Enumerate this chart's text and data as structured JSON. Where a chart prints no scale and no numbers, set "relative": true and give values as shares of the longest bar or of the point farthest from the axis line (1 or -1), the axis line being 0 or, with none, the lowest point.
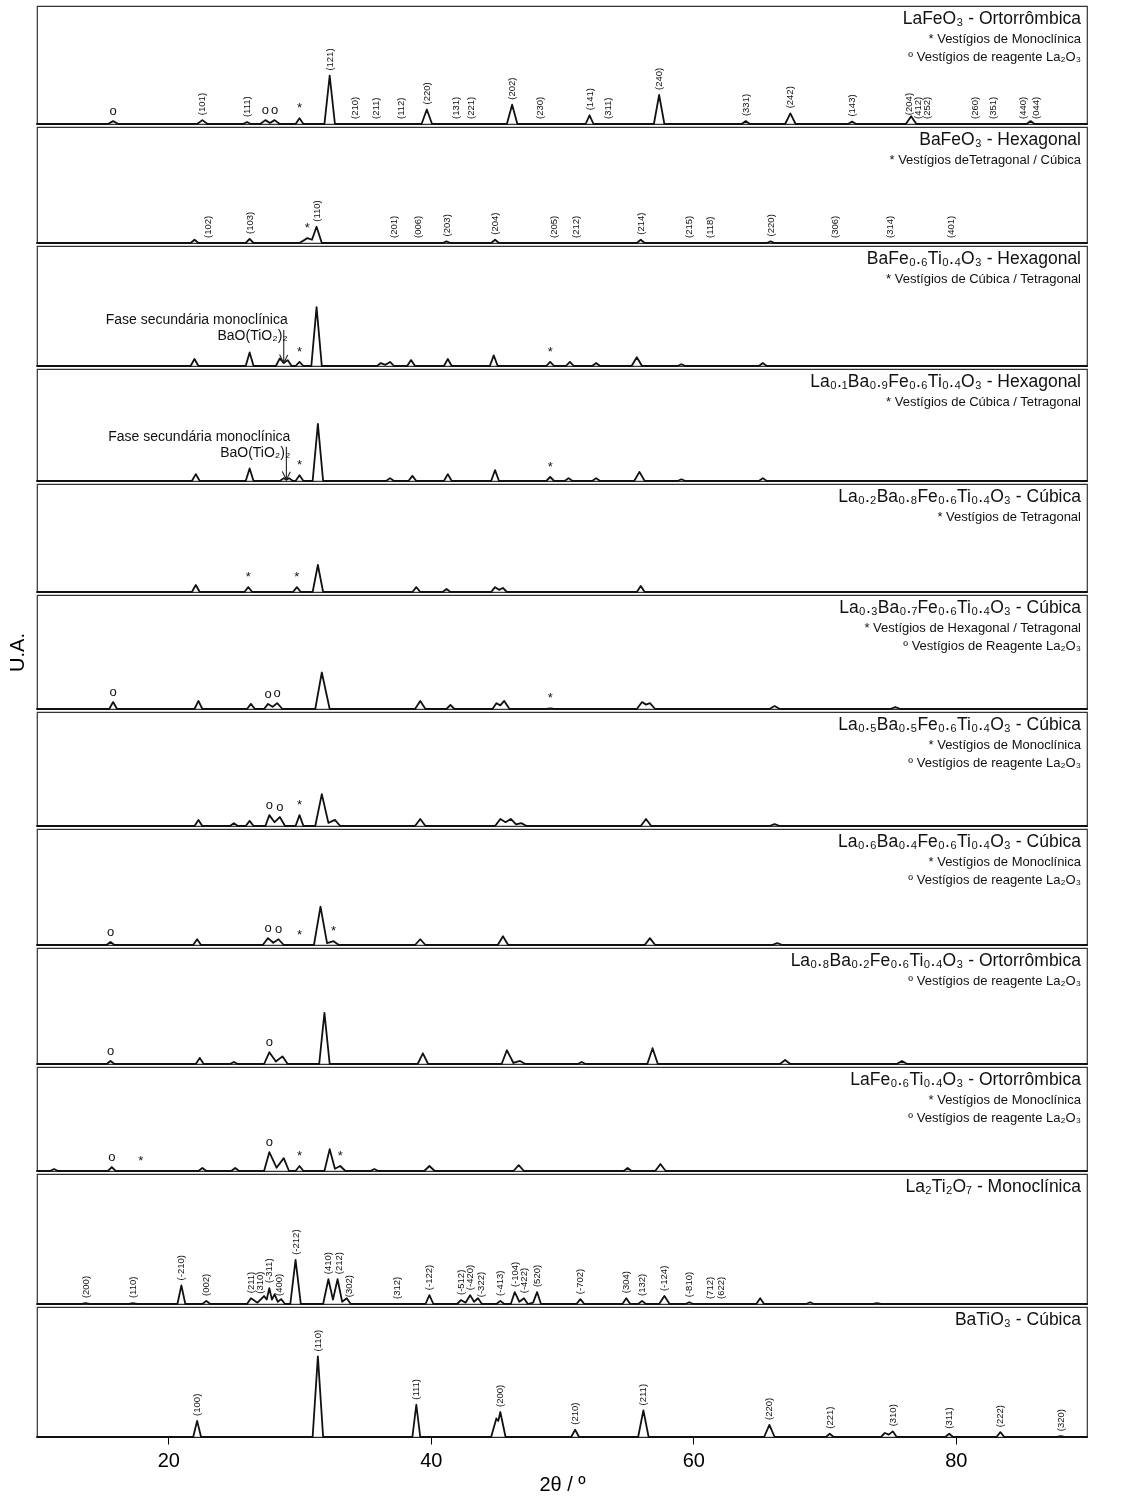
{
  "chart_data": [
    {
      "type": "line",
      "relative": true,
      "title": "LaFeO₃ - Ortorrômbica",
      "xlim": [
        10,
        90
      ],
      "tick_labels": false,
      "x": [
        10,
        15.4,
        15.8,
        16.2,
        22.2,
        22.6,
        23.0,
        25.7,
        26.0,
        26.3,
        27.0,
        27.4,
        27.75,
        28.1,
        28.5,
        29.7,
        30.0,
        30.3,
        31.9,
        32.3,
        32.7,
        39.3,
        39.7,
        40.1,
        45.8,
        46.2,
        46.6,
        51.8,
        52.1,
        52.4,
        57.0,
        57.4,
        57.8,
        63.7,
        64.0,
        64.3,
        67.0,
        67.4,
        67.8,
        71.8,
        72.1,
        72.4,
        76.2,
        76.6,
        77.0,
        85.4,
        85.7,
        86.0,
        90
      ],
      "series": [
        {
          "color": "#111111",
          "values": [
            0,
            0,
            0.06,
            0,
            0,
            0.08,
            0,
            0,
            0.04,
            0,
            0,
            0.08,
            0.02,
            0.08,
            0,
            0,
            0.12,
            0,
            0,
            1,
            0,
            0,
            0.3,
            0,
            0,
            0.4,
            0,
            0,
            0.18,
            0,
            0,
            0.6,
            0,
            0,
            0.06,
            0,
            0,
            0.22,
            0,
            0,
            0.05,
            0,
            0,
            0.16,
            0,
            0,
            0.06,
            0,
            0
          ]
        }
      ],
      "annotations": [
        "* Vestígios de Monoclínica",
        "º Vestígios de reagente La₂O₃",
        {
          "text": "o",
          "x": 15.8,
          "y": 0.06
        },
        {
          "text": "o",
          "x": 27.4,
          "y": 0.08
        },
        {
          "text": "o",
          "x": 28.1,
          "y": 0.08
        },
        {
          "text": "*",
          "x": 30.0,
          "y": 0.12
        },
        {
          "text": "(101)",
          "x": 22.6,
          "y": 0.08
        },
        {
          "text": "(111)",
          "x": 26.0,
          "y": 0.04
        },
        {
          "text": "(121)",
          "x": 32.3,
          "y": 1
        },
        {
          "text": "(210)",
          "x": 34.2,
          "y": 0
        },
        {
          "text": "(211)",
          "x": 35.8,
          "y": 0
        },
        {
          "text": "(112)",
          "x": 37.7,
          "y": 0
        },
        {
          "text": "(220)",
          "x": 39.7,
          "y": 0.3
        },
        {
          "text": "(131)",
          "x": 41.9,
          "y": 0
        },
        {
          "text": "(221)",
          "x": 43.1,
          "y": 0
        },
        {
          "text": "(202)",
          "x": 46.2,
          "y": 0.4
        },
        {
          "text": "(230)",
          "x": 48.3,
          "y": 0
        },
        {
          "text": "(141)",
          "x": 52.1,
          "y": 0.18
        },
        {
          "text": "(311)",
          "x": 53.5,
          "y": 0
        },
        {
          "text": "(240)",
          "x": 57.4,
          "y": 0.6
        },
        {
          "text": "(331)",
          "x": 64.0,
          "y": 0.06
        },
        {
          "text": "(242)",
          "x": 67.4,
          "y": 0.22
        },
        {
          "text": "(143)",
          "x": 72.1,
          "y": 0.05
        },
        {
          "text": "(204)",
          "x": 76.4,
          "y": 0.08
        },
        {
          "text": "(412)",
          "x": 77.1,
          "y": 0
        },
        {
          "text": "(252)",
          "x": 77.8,
          "y": 0
        },
        {
          "text": "(260)",
          "x": 81.5,
          "y": 0
        },
        {
          "text": "(351)",
          "x": 82.8,
          "y": 0
        },
        {
          "text": "(440)",
          "x": 85.1,
          "y": 0
        },
        {
          "text": "(044)",
          "x": 86.1,
          "y": 0
        }
      ]
    },
    {
      "type": "line",
      "relative": true,
      "title": "BaFeO₃ - Hexagonal",
      "xlim": [
        10,
        90
      ],
      "tick_labels": false,
      "x": [
        10,
        21.7,
        22.0,
        22.3,
        25.9,
        26.2,
        26.5,
        30.0,
        30.6,
        30.95,
        31.3,
        31.7,
        40.9,
        41.2,
        41.5,
        44.6,
        44.9,
        45.2,
        55.7,
        56.0,
        56.3,
        65.6,
        65.9,
        66.2,
        90
      ],
      "series": [
        {
          "color": "#111111",
          "values": [
            0,
            0,
            0.2,
            0,
            0,
            0.25,
            0,
            0,
            0.3,
            0.2,
            1,
            0,
            0,
            0.1,
            0,
            0,
            0.2,
            0,
            0,
            0.2,
            0,
            0,
            0.1,
            0,
            0
          ]
        }
      ],
      "annotations": [
        "* Vestígios deTetragonal / Cúbica",
        {
          "text": "*",
          "x": 30.6,
          "y": 0.3
        },
        {
          "text": "(102)",
          "x": 23.0,
          "y": 0
        },
        {
          "text": "(103)",
          "x": 26.2,
          "y": 0.25
        },
        {
          "text": "(110)",
          "x": 31.3,
          "y": 1
        },
        {
          "text": "(201)",
          "x": 37.2,
          "y": 0
        },
        {
          "text": "(006)",
          "x": 39.0,
          "y": 0
        },
        {
          "text": "(203)",
          "x": 41.2,
          "y": 0.1
        },
        {
          "text": "(204)",
          "x": 44.9,
          "y": 0.2
        },
        {
          "text": "(205)",
          "x": 49.4,
          "y": 0
        },
        {
          "text": "(212)",
          "x": 51.1,
          "y": 0
        },
        {
          "text": "(214)",
          "x": 56.0,
          "y": 0.2
        },
        {
          "text": "(215)",
          "x": 59.7,
          "y": 0
        },
        {
          "text": "(118)",
          "x": 61.3,
          "y": 0
        },
        {
          "text": "(220)",
          "x": 65.9,
          "y": 0.1
        },
        {
          "text": "(306)",
          "x": 70.8,
          "y": 0
        },
        {
          "text": "(314)",
          "x": 75.0,
          "y": 0
        },
        {
          "text": "(401)",
          "x": 79.6,
          "y": 0
        }
      ]
    },
    {
      "type": "line",
      "relative": true,
      "title": "BaFe₀.₆Ti₀.₄O₃ - Hexagonal",
      "xlim": [
        10,
        90
      ],
      "tick_labels": false,
      "x": [
        10,
        21.7,
        22.0,
        22.3,
        25.9,
        26.2,
        26.5,
        28.2,
        28.5,
        28.8,
        29.1,
        29.4,
        29.7,
        30.0,
        30.3,
        30.9,
        31.3,
        31.7,
        35.9,
        36.2,
        36.55,
        36.9,
        37.2,
        38.2,
        38.5,
        38.8,
        41.0,
        41.3,
        41.6,
        44.5,
        44.8,
        45.1,
        48.8,
        49.1,
        49.4,
        50.3,
        50.6,
        50.9,
        52.3,
        52.6,
        52.9,
        55.3,
        55.7,
        56.1,
        58.8,
        59.1,
        59.4,
        65.0,
        65.3,
        65.6,
        90
      ],
      "series": [
        {
          "color": "#111111",
          "values": [
            0,
            0,
            0.12,
            0,
            0,
            0.23,
            0,
            0,
            0.13,
            0.05,
            0.1,
            0,
            0,
            0.07,
            0,
            0,
            1,
            0,
            0,
            0.05,
            0.02,
            0.07,
            0,
            0,
            0.1,
            0,
            0,
            0.12,
            0,
            0,
            0.18,
            0,
            0,
            0.07,
            0,
            0,
            0.07,
            0,
            0,
            0.05,
            0,
            0,
            0.15,
            0,
            0,
            0.03,
            0,
            0,
            0.05,
            0,
            0
          ]
        }
      ],
      "annotations": [
        "* Vestígios de Cúbica / Tetragonal",
        {
          "text": "Fase secundária monoclínica BaO(TiO₂)₂",
          "x": 28.8,
          "y": 0.05
        },
        {
          "text": "*",
          "x": 30.0,
          "y": 0.07
        },
        {
          "text": "*",
          "x": 49.1,
          "y": 0.07
        }
      ]
    },
    {
      "type": "line",
      "relative": true,
      "title": "La₀.₁Ba₀.₉Fe₀.₆Ti₀.₄O₃ - Hexagonal",
      "xlim": [
        10,
        90
      ],
      "tick_labels": false,
      "x": [
        10,
        21.8,
        22.1,
        22.4,
        25.9,
        26.2,
        26.5,
        28.5,
        28.8,
        29.0,
        29.2,
        29.5,
        29.7,
        30.0,
        30.3,
        31.0,
        31.4,
        31.8,
        36.6,
        36.9,
        37.2,
        38.3,
        38.6,
        38.9,
        41.0,
        41.3,
        41.6,
        44.6,
        44.9,
        45.2,
        48.8,
        49.1,
        49.4,
        50.2,
        50.5,
        50.8,
        52.3,
        52.6,
        52.9,
        55.5,
        55.9,
        56.3,
        58.8,
        59.1,
        59.4,
        65.0,
        65.3,
        65.6,
        90
      ],
      "series": [
        {
          "color": "#111111",
          "values": [
            0,
            0,
            0.12,
            0,
            0,
            0.22,
            0,
            0,
            0.05,
            0.02,
            0.05,
            0,
            0,
            0.1,
            0,
            0,
            1,
            0,
            0,
            0.05,
            0,
            0,
            0.09,
            0,
            0,
            0.12,
            0,
            0,
            0.19,
            0,
            0,
            0.07,
            0,
            0,
            0.05,
            0,
            0,
            0.05,
            0,
            0,
            0.16,
            0,
            0,
            0.03,
            0,
            0,
            0.05,
            0,
            0
          ]
        }
      ],
      "annotations": [
        "* Vestígios de Cúbica / Tetragonal",
        {
          "text": "Fase secundária monoclínica BaO(TiO₂)₂",
          "x": 29.0,
          "y": 0.02
        },
        {
          "text": "*",
          "x": 30.0,
          "y": 0.1
        },
        {
          "text": "*",
          "x": 49.1,
          "y": 0.07
        }
      ]
    },
    {
      "type": "line",
      "relative": true,
      "title": "La₀.₂Ba₀.₈Fe₀.₆Ti₀.₄O₃ - Cúbica",
      "xlim": [
        10,
        90
      ],
      "tick_labels": false,
      "x": [
        10,
        21.8,
        22.1,
        22.4,
        25.8,
        26.1,
        26.4,
        29.5,
        29.8,
        30.1,
        31.0,
        31.4,
        31.8,
        38.6,
        38.9,
        39.2,
        40.9,
        41.2,
        41.5,
        44.6,
        44.9,
        45.2,
        45.5,
        45.8,
        55.7,
        56.0,
        56.3,
        90
      ],
      "series": [
        {
          "color": "#111111",
          "values": [
            0,
            0,
            0.26,
            0,
            0,
            0.18,
            0,
            0,
            0.18,
            0,
            0,
            1,
            0,
            0,
            0.18,
            0,
            0,
            0.11,
            0,
            0,
            0.18,
            0.08,
            0.15,
            0,
            0,
            0.22,
            0,
            0
          ]
        }
      ],
      "annotations": [
        "* Vestígios de Tetragonal",
        {
          "text": "*",
          "x": 26.1,
          "y": 0.18
        },
        {
          "text": "*",
          "x": 29.8,
          "y": 0.18
        }
      ]
    },
    {
      "type": "line",
      "relative": true,
      "title": "La₀.₃Ba₀.₇Fe₀.₆Ti₀.₄O₃ - Cúbica",
      "ylabel": "U.A.",
      "xlim": [
        10,
        90
      ],
      "tick_labels": false,
      "x": [
        10,
        15.5,
        15.8,
        16.1,
        22.0,
        22.3,
        22.6,
        26.0,
        26.3,
        26.6,
        27.3,
        27.6,
        27.95,
        28.3,
        28.7,
        31.2,
        31.7,
        32.3,
        38.8,
        39.2,
        39.6,
        41.2,
        41.5,
        41.8,
        44.7,
        45.0,
        45.3,
        45.6,
        46.0,
        48.8,
        49.1,
        49.4,
        55.7,
        56.1,
        56.4,
        56.7,
        57.1,
        65.8,
        66.2,
        66.6,
        75.0,
        75.4,
        75.8,
        90
      ],
      "series": [
        {
          "color": "#111111",
          "values": [
            0,
            0,
            0.19,
            0,
            0,
            0.22,
            0,
            0,
            0.14,
            0,
            0,
            0.14,
            0.06,
            0.16,
            0,
            0,
            1,
            0,
            0,
            0.22,
            0,
            0,
            0.11,
            0,
            0,
            0.16,
            0.1,
            0.22,
            0,
            0,
            0.02,
            0,
            0,
            0.19,
            0.12,
            0.16,
            0,
            0,
            0.08,
            0,
            0,
            0.05,
            0,
            0
          ]
        }
      ],
      "annotations": [
        "* Vestígios de Hexagonal / Tetragonal",
        "º Vestígios de Reagente La₂O₃",
        {
          "text": "o",
          "x": 15.8,
          "y": 0.19
        },
        {
          "text": "o",
          "x": 27.6,
          "y": 0.14
        },
        {
          "text": "o",
          "x": 28.3,
          "y": 0.16
        },
        {
          "text": "*",
          "x": 49.1,
          "y": 0.02
        }
      ]
    },
    {
      "type": "line",
      "relative": true,
      "title": "La₀.₅Ba₀.₅Fe₀.₆Ti₀.₄O₃ - Cúbica",
      "xlim": [
        10,
        90
      ],
      "tick_labels": false,
      "x": [
        10,
        22.0,
        22.3,
        22.6,
        24.7,
        25.0,
        25.3,
        25.9,
        26.2,
        26.5,
        27.4,
        27.7,
        28.1,
        28.5,
        28.9,
        29.7,
        30.0,
        30.3,
        31.2,
        31.7,
        32.2,
        32.7,
        33.1,
        38.8,
        39.2,
        39.6,
        44.9,
        45.3,
        45.7,
        46.1,
        46.5,
        46.9,
        47.3,
        56.0,
        56.4,
        56.8,
        65.8,
        66.2,
        66.6,
        90
      ],
      "series": [
        {
          "color": "#111111",
          "values": [
            0,
            0,
            0.19,
            0,
            0,
            0.09,
            0,
            0,
            0.16,
            0,
            0,
            0.34,
            0.12,
            0.28,
            0,
            0,
            0.34,
            0,
            0,
            1,
            0.1,
            0.19,
            0,
            0,
            0.22,
            0,
            0,
            0.22,
            0.12,
            0.22,
            0.05,
            0.09,
            0,
            0,
            0.22,
            0,
            0,
            0.06,
            0,
            0
          ]
        }
      ],
      "annotations": [
        "* Vestígios de Monoclínica",
        "º Vestígios de reagente La₂O₃",
        {
          "text": "o",
          "x": 27.7,
          "y": 0.34
        },
        {
          "text": "o",
          "x": 28.5,
          "y": 0.28
        },
        {
          "text": "*",
          "x": 30.0,
          "y": 0.34
        }
      ]
    },
    {
      "type": "line",
      "relative": true,
      "title": "La₀.₆Ba₀.₄Fe₀.₆Ti₀.₄O₃ - Cúbica",
      "xlim": [
        10,
        90
      ],
      "tick_labels": false,
      "x": [
        10,
        15.3,
        15.6,
        15.9,
        21.9,
        22.2,
        22.5,
        27.2,
        27.6,
        28.0,
        28.4,
        28.8,
        31.1,
        31.6,
        32.1,
        32.6,
        33.0,
        38.8,
        39.2,
        39.6,
        45.1,
        45.5,
        45.9,
        56.3,
        56.7,
        57.1,
        66.0,
        66.4,
        66.8,
        90
      ],
      "series": [
        {
          "color": "#111111",
          "values": [
            0,
            0,
            0.08,
            0,
            0,
            0.15,
            0,
            0,
            0.18,
            0.06,
            0.15,
            0,
            0,
            1,
            0.05,
            0.1,
            0,
            0,
            0.15,
            0,
            0,
            0.23,
            0,
            0,
            0.18,
            0,
            0,
            0.05,
            0,
            0
          ]
        }
      ],
      "annotations": [
        "* Vestígios de Monoclínica",
        "º Vestígios de reagente La₂O₃",
        {
          "text": "o",
          "x": 15.6,
          "y": 0.08
        },
        {
          "text": "o",
          "x": 27.6,
          "y": 0.18
        },
        {
          "text": "o",
          "x": 28.4,
          "y": 0.15
        },
        {
          "text": "*",
          "x": 30.0,
          "y": 0
        },
        {
          "text": "*",
          "x": 32.6,
          "y": 0.1
        }
      ]
    },
    {
      "type": "line",
      "relative": true,
      "title": "La₀.₈Ba₀.₂Fe₀.₆Ti₀.₄O₃ - Ortorrômbica",
      "xlim": [
        10,
        90
      ],
      "tick_labels": false,
      "x": [
        10,
        15.3,
        15.6,
        15.9,
        22.1,
        22.4,
        22.7,
        24.7,
        25.0,
        25.3,
        27.3,
        27.7,
        28.2,
        28.7,
        29.1,
        31.5,
        31.9,
        32.3,
        39.0,
        39.4,
        39.8,
        45.4,
        45.8,
        46.3,
        46.8,
        47.2,
        51.2,
        51.5,
        51.8,
        56.5,
        56.9,
        57.3,
        66.6,
        67.0,
        67.4,
        75.5,
        75.9,
        76.3,
        90
      ],
      "series": [
        {
          "color": "#111111",
          "values": [
            0,
            0,
            0.06,
            0,
            0,
            0.12,
            0,
            0,
            0.04,
            0,
            0,
            0.23,
            0.05,
            0.15,
            0,
            0,
            1,
            0,
            0,
            0.21,
            0,
            0,
            0.27,
            0.02,
            0.06,
            0,
            0,
            0.04,
            0,
            0,
            0.31,
            0,
            0,
            0.08,
            0,
            0,
            0.06,
            0,
            0
          ]
        }
      ],
      "annotations": [
        "º Vestígios de reagente La₂O₃",
        {
          "text": "o",
          "x": 15.6,
          "y": 0.06
        },
        {
          "text": "o",
          "x": 27.7,
          "y": 0.23
        }
      ]
    },
    {
      "type": "line",
      "relative": true,
      "title": "LaFe₀.₆Ti₀.₄O₃ - Ortorrômbica",
      "xlim": [
        10,
        90
      ],
      "tick_labels": false,
      "x": [
        10,
        11.0,
        11.3,
        11.6,
        15.4,
        15.7,
        16.0,
        22.3,
        22.6,
        22.9,
        24.8,
        25.1,
        25.4,
        27.3,
        27.7,
        28.25,
        28.8,
        29.2,
        29.7,
        30.0,
        30.3,
        31.9,
        32.3,
        32.7,
        33.1,
        33.5,
        35.4,
        35.7,
        36.0,
        39.5,
        39.9,
        40.3,
        46.3,
        46.7,
        47.1,
        54.7,
        55.0,
        55.3,
        57.1,
        57.5,
        57.9,
        90
      ],
      "series": [
        {
          "color": "#111111",
          "values": [
            0,
            0,
            0.09,
            0,
            0,
            0.18,
            0,
            0,
            0.14,
            0,
            0,
            0.14,
            0,
            0,
            0.86,
            0.15,
            0.59,
            0,
            0,
            0.23,
            0,
            0,
            1,
            0.1,
            0.23,
            0,
            0,
            0.09,
            0,
            0,
            0.23,
            0,
            0,
            0.27,
            0,
            0,
            0.14,
            0,
            0,
            0.32,
            0,
            0
          ]
        }
      ],
      "annotations": [
        "* Vestígios de Monoclínica",
        "º Vestígios de reagente La₂O₃",
        {
          "text": "o",
          "x": 15.7,
          "y": 0.18
        },
        {
          "text": "*",
          "x": 17.9,
          "y": 0
        },
        {
          "text": "o",
          "x": 27.7,
          "y": 0.86
        },
        {
          "text": "*",
          "x": 30.0,
          "y": 0.23
        },
        {
          "text": "*",
          "x": 33.1,
          "y": 0.23
        }
      ]
    },
    {
      "type": "line",
      "relative": true,
      "title": "La₂Ti₂O₇ - Monoclínica",
      "xlim": [
        10,
        90
      ],
      "tick_labels": false,
      "x": [
        10,
        13.4,
        13.7,
        14.0,
        17.0,
        17.3,
        17.6,
        20.7,
        21.0,
        21.3,
        22.6,
        22.9,
        23.2,
        26.0,
        26.3,
        26.8,
        27.3,
        27.5,
        27.7,
        27.9,
        28.1,
        28.35,
        28.6,
        28.9,
        29.3,
        29.7,
        30.1,
        31.8,
        32.2,
        32.55,
        32.9,
        33.25,
        33.6,
        33.9,
        39.6,
        39.9,
        40.2,
        42.0,
        42.3,
        42.65,
        43.0,
        43.3,
        43.6,
        43.9,
        45.0,
        45.3,
        45.6,
        46.1,
        46.4,
        46.75,
        47.1,
        47.4,
        47.8,
        48.1,
        48.4,
        51.1,
        51.4,
        51.7,
        54.6,
        54.9,
        55.2,
        55.8,
        56.1,
        56.4,
        57.4,
        57.8,
        58.2,
        59.4,
        59.7,
        60.0,
        64.8,
        65.1,
        65.4,
        68.6,
        68.9,
        69.2,
        73.7,
        74.0,
        74.3,
        90
      ],
      "series": [
        {
          "color": "#111111",
          "values": [
            0,
            0,
            0.02,
            0,
            0,
            0.02,
            0,
            0,
            0.42,
            0,
            0,
            0.07,
            0,
            0,
            0.13,
            0.03,
            0.18,
            0.1,
            0.36,
            0.1,
            0.22,
            0.05,
            0.11,
            0,
            0,
            1,
            0,
            0,
            0.56,
            0.1,
            0.56,
            0.05,
            0.13,
            0,
            0,
            0.2,
            0,
            0,
            0.09,
            0.03,
            0.2,
            0.05,
            0.13,
            0,
            0,
            0.07,
            0,
            0,
            0.27,
            0.05,
            0.13,
            0,
            0.03,
            0.27,
            0,
            0,
            0.11,
            0,
            0,
            0.13,
            0,
            0,
            0.07,
            0,
            0,
            0.18,
            0,
            0,
            0.04,
            0,
            0,
            0.13,
            0,
            0,
            0.04,
            0,
            0,
            0.02,
            0,
            0
          ]
        }
      ],
      "annotations": [
        {
          "text": "(200)",
          "x": 13.7,
          "y": 0.02
        },
        {
          "text": "(110)",
          "x": 17.3,
          "y": 0.02
        },
        {
          "text": "(-210)",
          "x": 21.0,
          "y": 0.42
        },
        {
          "text": "(002)",
          "x": 22.9,
          "y": 0.07
        },
        {
          "text": "(211)",
          "x": 26.3,
          "y": 0.13
        },
        {
          "text": "(310)",
          "x": 27.0,
          "y": 0.12
        },
        {
          "text": "(-311)",
          "x": 27.7,
          "y": 0.36
        },
        {
          "text": "(400)",
          "x": 28.4,
          "y": 0.07
        },
        {
          "text": "(-212)",
          "x": 29.7,
          "y": 1
        },
        {
          "text": "(410)",
          "x": 32.2,
          "y": 0.56
        },
        {
          "text": "(212)",
          "x": 33.0,
          "y": 0.56
        },
        {
          "text": "(302)",
          "x": 33.8,
          "y": 0.04
        },
        {
          "text": "(312)",
          "x": 37.4,
          "y": 0
        },
        {
          "text": "(-122)",
          "x": 39.9,
          "y": 0.2
        },
        {
          "text": "(-512)",
          "x": 42.3,
          "y": 0.09
        },
        {
          "text": "(-420)",
          "x": 43.0,
          "y": 0.2
        },
        {
          "text": "(-322)",
          "x": 43.8,
          "y": 0.04
        },
        {
          "text": "(-413)",
          "x": 45.3,
          "y": 0.07
        },
        {
          "text": "(-104)",
          "x": 46.4,
          "y": 0.27
        },
        {
          "text": "(-422)",
          "x": 47.1,
          "y": 0.13
        },
        {
          "text": "(520)",
          "x": 48.1,
          "y": 0.27
        },
        {
          "text": "(-702)",
          "x": 51.4,
          "y": 0.11
        },
        {
          "text": "(304)",
          "x": 54.9,
          "y": 0.13
        },
        {
          "text": "(132)",
          "x": 56.1,
          "y": 0.07
        },
        {
          "text": "(-124)",
          "x": 57.8,
          "y": 0.18
        },
        {
          "text": "(-810)",
          "x": 59.7,
          "y": 0.04
        },
        {
          "text": "(712)",
          "x": 61.3,
          "y": 0
        },
        {
          "text": "(622)",
          "x": 62.1,
          "y": 0
        }
      ]
    },
    {
      "type": "line",
      "relative": true,
      "title": "BaTiO₃ - Cúbica",
      "xlabel": "2θ / º",
      "xlim": [
        10,
        90
      ],
      "xticks": [
        20,
        40,
        60,
        80
      ],
      "tick_labels": "x",
      "x": [
        10,
        21.9,
        22.2,
        22.5,
        31.0,
        31.4,
        31.8,
        38.6,
        38.9,
        39.2,
        44.6,
        45.0,
        45.15,
        45.3,
        45.7,
        50.7,
        51.0,
        51.3,
        55.8,
        56.2,
        56.6,
        65.4,
        65.8,
        66.2,
        70.1,
        70.4,
        70.7,
        74.3,
        74.6,
        74.9,
        75.2,
        75.5,
        79.2,
        79.5,
        79.8,
        83.1,
        83.4,
        83.7,
        87.7,
        88.0,
        88.3,
        90
      ],
      "series": [
        {
          "color": "#111111",
          "values": [
            0,
            0,
            0.2,
            0,
            0,
            1,
            0,
            0,
            0.4,
            0,
            0,
            0.23,
            0.2,
            0.31,
            0,
            0,
            0.09,
            0,
            0,
            0.33,
            0,
            0,
            0.15,
            0,
            0,
            0.04,
            0,
            0,
            0.05,
            0.03,
            0.07,
            0,
            0,
            0.04,
            0,
            0,
            0.06,
            0,
            0,
            0.01,
            0,
            0
          ]
        }
      ],
      "annotations": [
        {
          "text": "(100)",
          "x": 22.2,
          "y": 0.2
        },
        {
          "text": "(110)",
          "x": 31.4,
          "y": 1
        },
        {
          "text": "(111)",
          "x": 38.9,
          "y": 0.4
        },
        {
          "text": "(200)",
          "x": 45.3,
          "y": 0.31
        },
        {
          "text": "(210)",
          "x": 51.0,
          "y": 0.09
        },
        {
          "text": "(211)",
          "x": 56.2,
          "y": 0.33
        },
        {
          "text": "(220)",
          "x": 65.8,
          "y": 0.15
        },
        {
          "text": "(221)",
          "x": 70.4,
          "y": 0.04
        },
        {
          "text": "(310)",
          "x": 75.2,
          "y": 0.07
        },
        {
          "text": "(311)",
          "x": 79.5,
          "y": 0.04
        },
        {
          "text": "(222)",
          "x": 83.4,
          "y": 0.06
        },
        {
          "text": "(320)",
          "x": 88.0,
          "y": 0.01
        }
      ]
    }
  ]
}
